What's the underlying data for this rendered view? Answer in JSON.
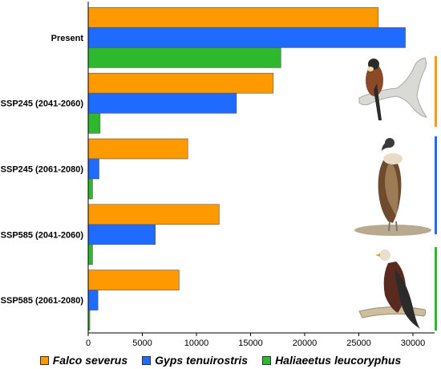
{
  "chart_data": {
    "type": "bar",
    "orientation": "horizontal",
    "categories": [
      "Present",
      "SSP245 (2041-2060)",
      "SSP245 (2061-2080)",
      "SSP585 (2041-2060)",
      "SSP585 (2061-2080)"
    ],
    "series": [
      {
        "name": "Falco severus",
        "color": "#FF9900",
        "values": [
          26800,
          17100,
          9200,
          12100,
          8400
        ]
      },
      {
        "name": "Gyps tenuirostris",
        "color": "#1F6BFF",
        "values": [
          29300,
          13700,
          1000,
          6200,
          900
        ]
      },
      {
        "name": "Haliaeetus leucoryphus",
        "color": "#2EB82E",
        "values": [
          17800,
          1100,
          400,
          400,
          150
        ]
      }
    ],
    "xlim": [
      0,
      32000
    ],
    "xticks": [
      0,
      5000,
      10000,
      15000,
      20000,
      25000,
      30000
    ],
    "xtick_labels": [
      "0",
      "5000",
      "10000",
      "15000",
      "20000",
      "25000",
      "30000"
    ],
    "grid": false,
    "legend_position": "bottom"
  },
  "illustrations": [
    {
      "icon": "falcon-perched-on-branch-icon",
      "accent": "#FF9900"
    },
    {
      "icon": "vulture-standing-icon",
      "accent": "#1F6BFF"
    },
    {
      "icon": "eagle-on-branch-icon",
      "accent": "#2EB82E"
    }
  ]
}
